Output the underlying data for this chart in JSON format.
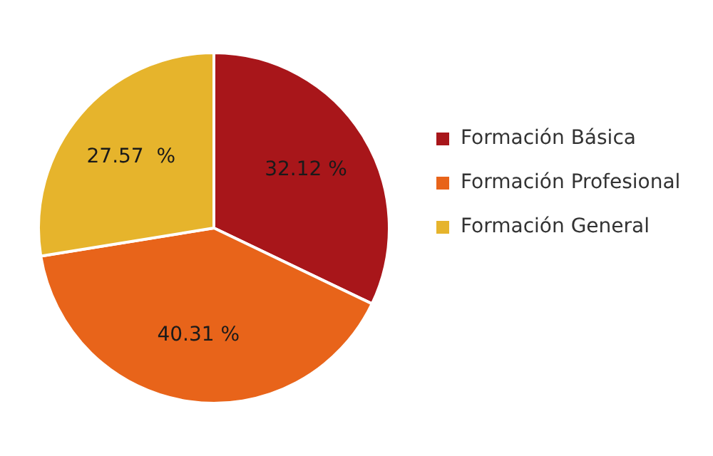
{
  "chart_data": {
    "type": "pie",
    "categories": [
      "Formación Básica",
      "Formación Profesional",
      "Formación General"
    ],
    "values": [
      32.12,
      40.31,
      27.57
    ],
    "value_labels": [
      "32.12 %",
      "40.31 %",
      "27.57  %"
    ],
    "colors": [
      "#a8161a",
      "#e8641a",
      "#e6b42c"
    ],
    "legend": "right"
  }
}
